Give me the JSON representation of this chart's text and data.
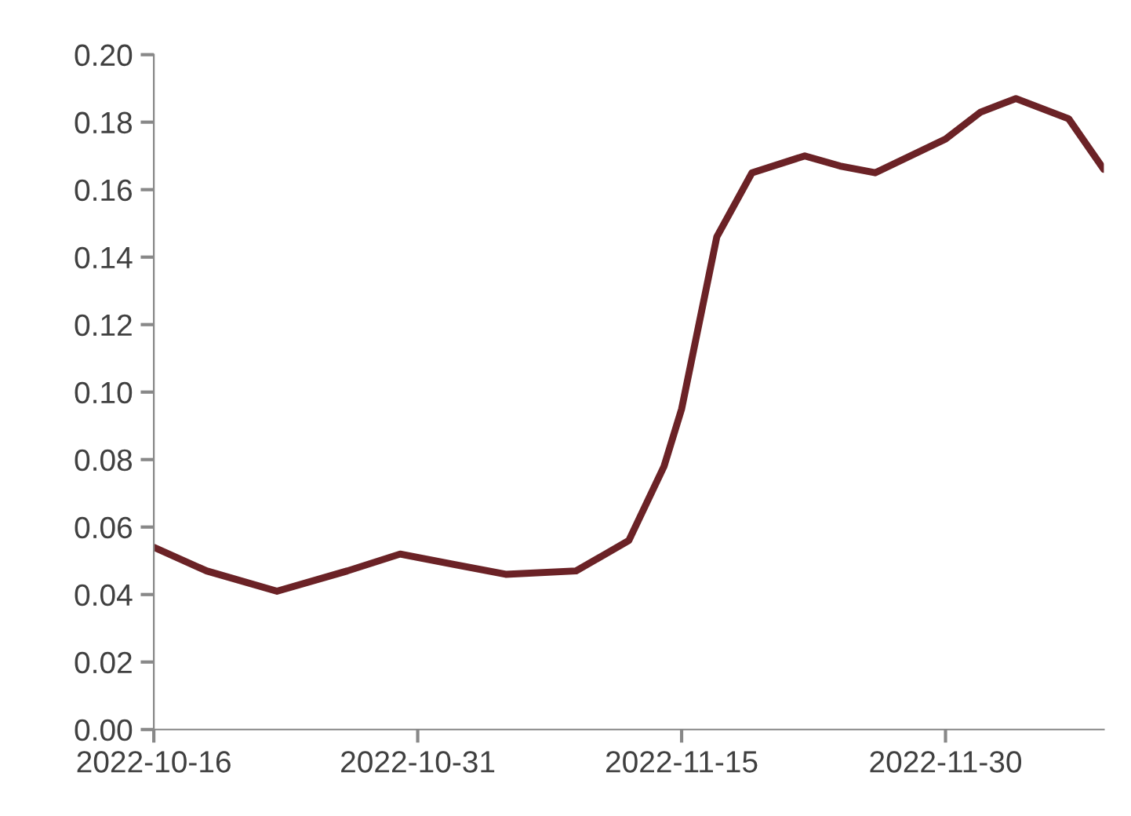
{
  "chart_data": {
    "type": "line",
    "x": [
      "2022-10-16",
      "2022-10-19",
      "2022-10-23",
      "2022-10-27",
      "2022-10-30",
      "2022-11-02",
      "2022-11-05",
      "2022-11-09",
      "2022-11-12",
      "2022-11-14",
      "2022-11-15",
      "2022-11-17",
      "2022-11-19",
      "2022-11-22",
      "2022-11-24",
      "2022-11-26",
      "2022-11-30",
      "2022-12-02",
      "2022-12-04",
      "2022-12-07",
      "2022-12-09"
    ],
    "series": [
      {
        "color": "#6b2226",
        "values": [
          0.054,
          0.047,
          0.041,
          0.047,
          0.052,
          0.049,
          0.046,
          0.047,
          0.056,
          0.078,
          0.095,
          0.146,
          0.165,
          0.17,
          0.167,
          0.165,
          0.175,
          0.183,
          0.187,
          0.181,
          0.166
        ]
      }
    ],
    "xlim": [
      "2022-10-16",
      "2022-12-09"
    ],
    "xticks": [
      "2022-10-16",
      "2022-10-31",
      "2022-11-15",
      "2022-11-30"
    ],
    "ylim": [
      0,
      0.2
    ],
    "yticks": [
      {
        "value": 0,
        "label": "0.00"
      },
      {
        "value": 0.02,
        "label": "0.02"
      },
      {
        "value": 0.04,
        "label": "0.04"
      },
      {
        "value": 0.06,
        "label": "0.06"
      },
      {
        "value": 0.08,
        "label": "0.08"
      },
      {
        "value": 0.1,
        "label": "0.10"
      },
      {
        "value": 0.12,
        "label": "0.12"
      },
      {
        "value": 0.14,
        "label": "0.14"
      },
      {
        "value": 0.16,
        "label": "0.16"
      },
      {
        "value": 0.18,
        "label": "0.18"
      },
      {
        "value": 0.2,
        "label": "0.20"
      }
    ],
    "grid": false,
    "legend": false
  }
}
